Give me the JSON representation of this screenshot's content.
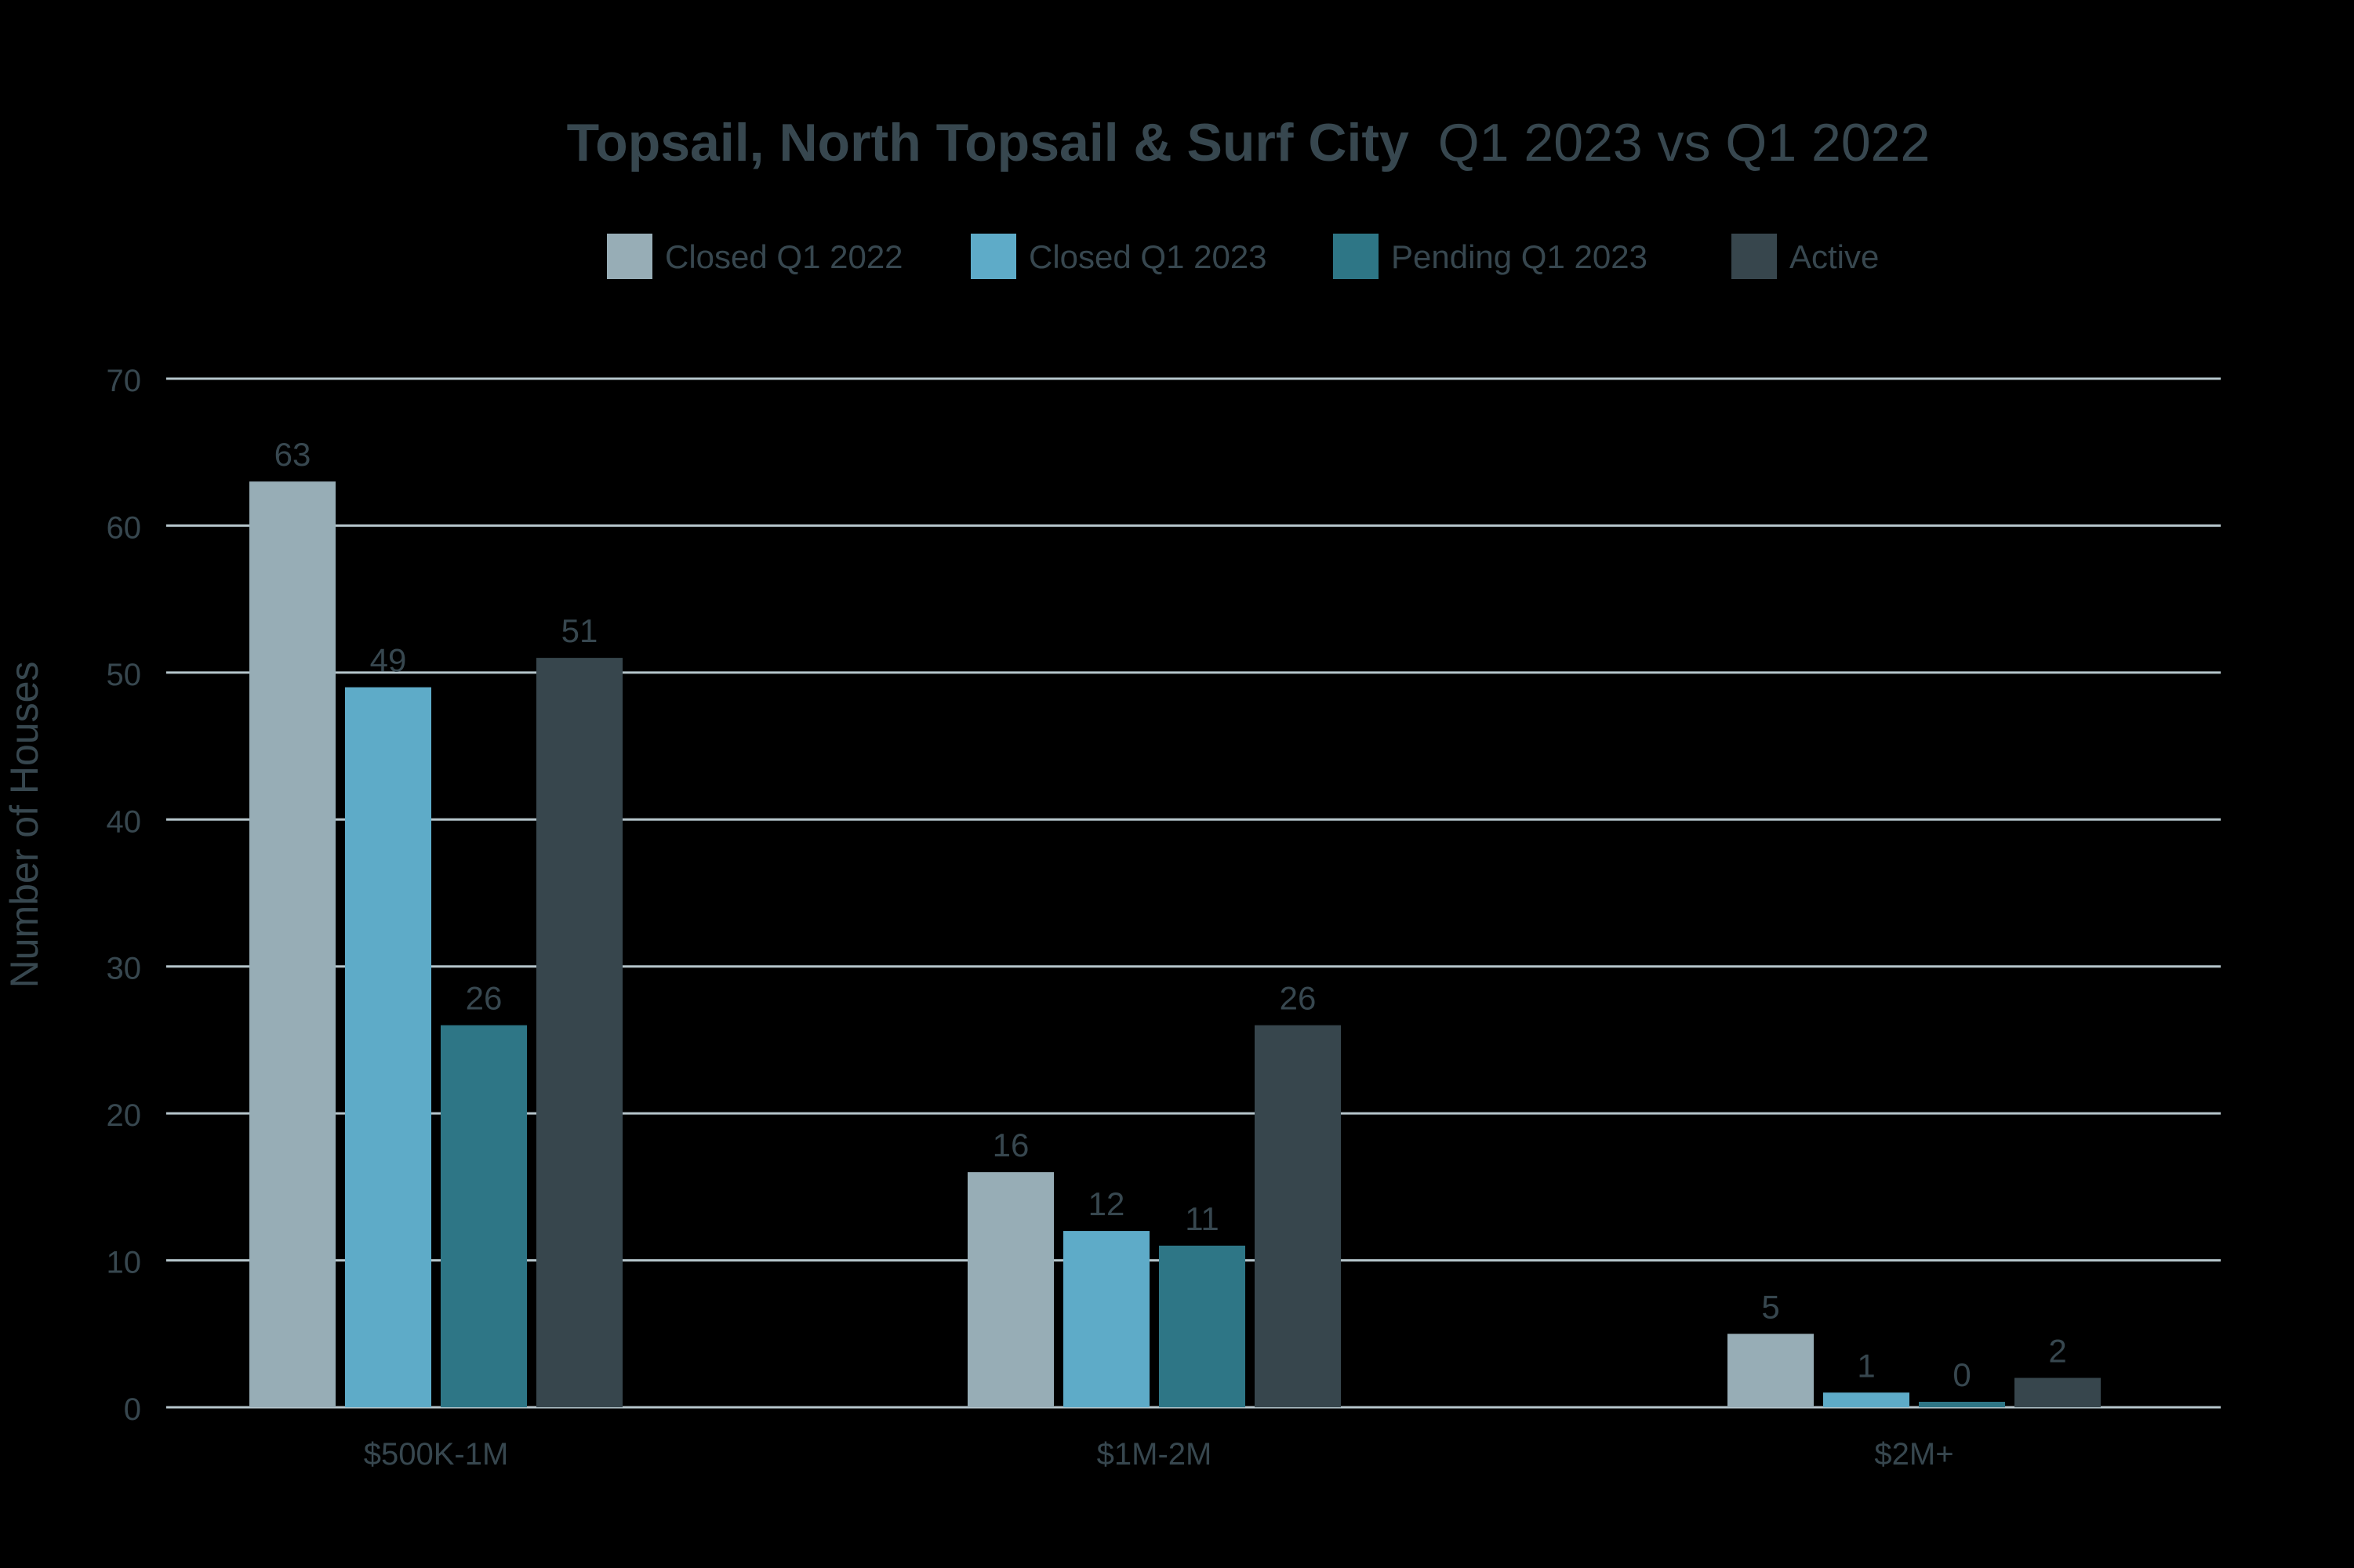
{
  "chart_data": {
    "type": "bar",
    "title_bold": "Topsail, North Topsail & Surf City",
    "title_rest": "Q1 2023 vs Q1 2022",
    "xlabel": "",
    "ylabel": "Number of Houses",
    "ylim": [
      0,
      70
    ],
    "yticks": [
      0,
      10,
      20,
      30,
      40,
      50,
      60,
      70
    ],
    "grid": true,
    "legend_position": "top-center",
    "categories": [
      "$500K-1M",
      "$1M-2M",
      "$2M+"
    ],
    "series": [
      {
        "name": "Closed Q1 2022",
        "color": "#97adb6",
        "values": [
          63,
          16,
          5
        ]
      },
      {
        "name": "Closed Q1 2023",
        "color": "#5eabc8",
        "values": [
          49,
          12,
          1
        ]
      },
      {
        "name": "Pending Q1 2023",
        "color": "#2e7686",
        "values": [
          26,
          11,
          0
        ]
      },
      {
        "name": "Active",
        "color": "#37464d",
        "values": [
          51,
          26,
          2
        ]
      }
    ],
    "colors": {
      "background": "#000000",
      "text": "#37474f",
      "gridline": "#b6c6cc"
    }
  }
}
